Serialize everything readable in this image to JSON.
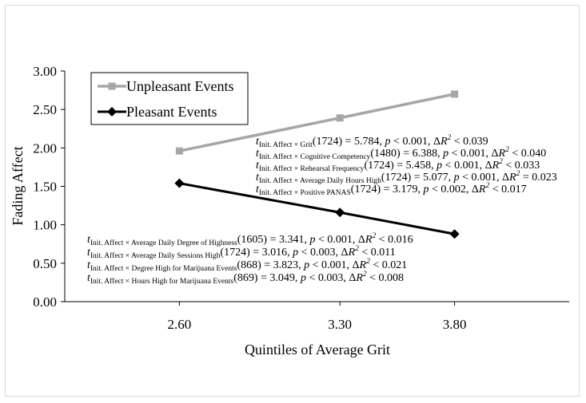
{
  "chart_data": {
    "type": "line",
    "categories": [
      "2.60",
      "3.30",
      "3.80"
    ],
    "x": [
      2.6,
      3.3,
      3.8
    ],
    "xlim": [
      2.1,
      4.3
    ],
    "ylim": [
      0,
      3
    ],
    "yticks": [
      "0.00",
      "0.50",
      "1.00",
      "1.50",
      "2.00",
      "2.50",
      "3.00"
    ],
    "ytick_values": [
      0,
      0.5,
      1,
      1.5,
      2,
      2.5,
      3
    ],
    "xlabel": "Quintiles of Average Grit",
    "ylabel": "Fading Affect",
    "title": "",
    "grid": false,
    "legend": "top-left",
    "series": [
      {
        "name": "Unpleasant Events",
        "values": [
          1.96,
          2.39,
          2.7
        ],
        "color": "#a6a6a6",
        "marker": "square"
      },
      {
        "name": "Pleasant Events",
        "values": [
          1.54,
          1.16,
          0.88
        ],
        "color": "#000000",
        "marker": "diamond"
      }
    ],
    "annotations_upper": [
      {
        "sub": "Init. Affect × Grit",
        "df": "(1724) = 5.784, ",
        "p": "< 0.001, Δ",
        "r": "< 0.039"
      },
      {
        "sub": "Init. Affect × Cognitive Competency",
        "df": "(1480) = 6.388, ",
        "p": "< 0.001, Δ",
        "r": "< 0.040"
      },
      {
        "sub": "Init. Affect × Rehearsal Frequency",
        "df": "(1724) = 5.458, ",
        "p": "< 0.001, Δ",
        "r": "< 0.033"
      },
      {
        "sub": "Init. Affect × Average Daily Hours High",
        "df": "(1724) = 5.077, ",
        "p": "< 0.001, Δ",
        "r": "= 0.023"
      },
      {
        "sub": "Init. Affect × Positive PANAS",
        "df": "(1724) = 3.179, ",
        "p": "< 0.002, Δ",
        "r": "< 0.017"
      }
    ],
    "annotations_lower": [
      {
        "sub": "Init. Affect × Average Daily Degree of Highness",
        "df": "(1605) = 3.341, ",
        "p": "< 0.001, Δ",
        "r": "< 0.016"
      },
      {
        "sub": "Init. Affect × Average Daily Sessions High",
        "df": "(1724) = 3.016, ",
        "p": "< 0.003, Δ",
        "r": "< 0.011"
      },
      {
        "sub": "Init. Affect × Degree High for Marijuana Events",
        "df": "(868) = 3.823, ",
        "p": "< 0.001, Δ",
        "r": "< 0.021"
      },
      {
        "sub": "Init. Affect × Hours High for Marijuana Events",
        "df": "(869) = 3.049, ",
        "p": "< 0.003, Δ",
        "r": "< 0.008"
      }
    ]
  }
}
